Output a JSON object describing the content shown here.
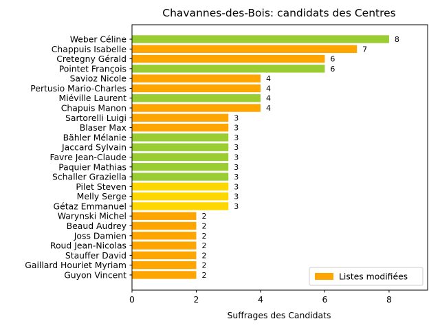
{
  "chart_data": {
    "type": "bar",
    "orientation": "horizontal",
    "title": "Chavannes-des-Bois: candidats des Centres",
    "xlabel": "Suffrages des Candidats",
    "ylabel": "",
    "xlim": [
      0,
      9.2
    ],
    "xticks": [
      0,
      2,
      4,
      6,
      8
    ],
    "grid": false,
    "legend": {
      "placement": "bottom-right",
      "entries": [
        {
          "label": "Listes modifiées",
          "color": "#FFA500"
        }
      ]
    },
    "colors": {
      "orange": "#FFA500",
      "green": "#9ACD32",
      "yellow": "#FFD700"
    },
    "categories": [
      "Weber Céline",
      "Chappuis Isabelle",
      "Cretegny Gérald",
      "Pointet François",
      "Savioz Nicole",
      "Pertusio Mario-Charles",
      "Miéville Laurent",
      "Chapuis Manon",
      "Sartorelli Luigi",
      "Blaser Max",
      "Bähler Mélanie",
      "Jaccard Sylvain",
      "Favre Jean-Claude",
      "Paquier Mathias",
      "Schaller Graziella",
      "Pilet Steven",
      "Melly Serge",
      "Gétaz Emmanuel",
      "Warynski Michel",
      "Beaud Audrey",
      "Joss Damien",
      "Roud Jean-Nicolas",
      "Stauffer David",
      "Gaillard Houriet Myriam",
      "Guyon Vincent"
    ],
    "values": [
      8,
      7,
      6,
      6,
      4,
      4,
      4,
      4,
      3,
      3,
      3,
      3,
      3,
      3,
      3,
      3,
      3,
      3,
      2,
      2,
      2,
      2,
      2,
      2,
      2
    ],
    "bar_colors": [
      "#9ACD32",
      "#FFA500",
      "#FFA500",
      "#9ACD32",
      "#FFA500",
      "#FFA500",
      "#9ACD32",
      "#FFA500",
      "#FFA500",
      "#FFA500",
      "#9ACD32",
      "#9ACD32",
      "#9ACD32",
      "#9ACD32",
      "#9ACD32",
      "#FFD700",
      "#FFD700",
      "#FFD700",
      "#FFA500",
      "#FFA500",
      "#FFA500",
      "#FFA500",
      "#FFA500",
      "#FFA500",
      "#FFA500"
    ]
  }
}
